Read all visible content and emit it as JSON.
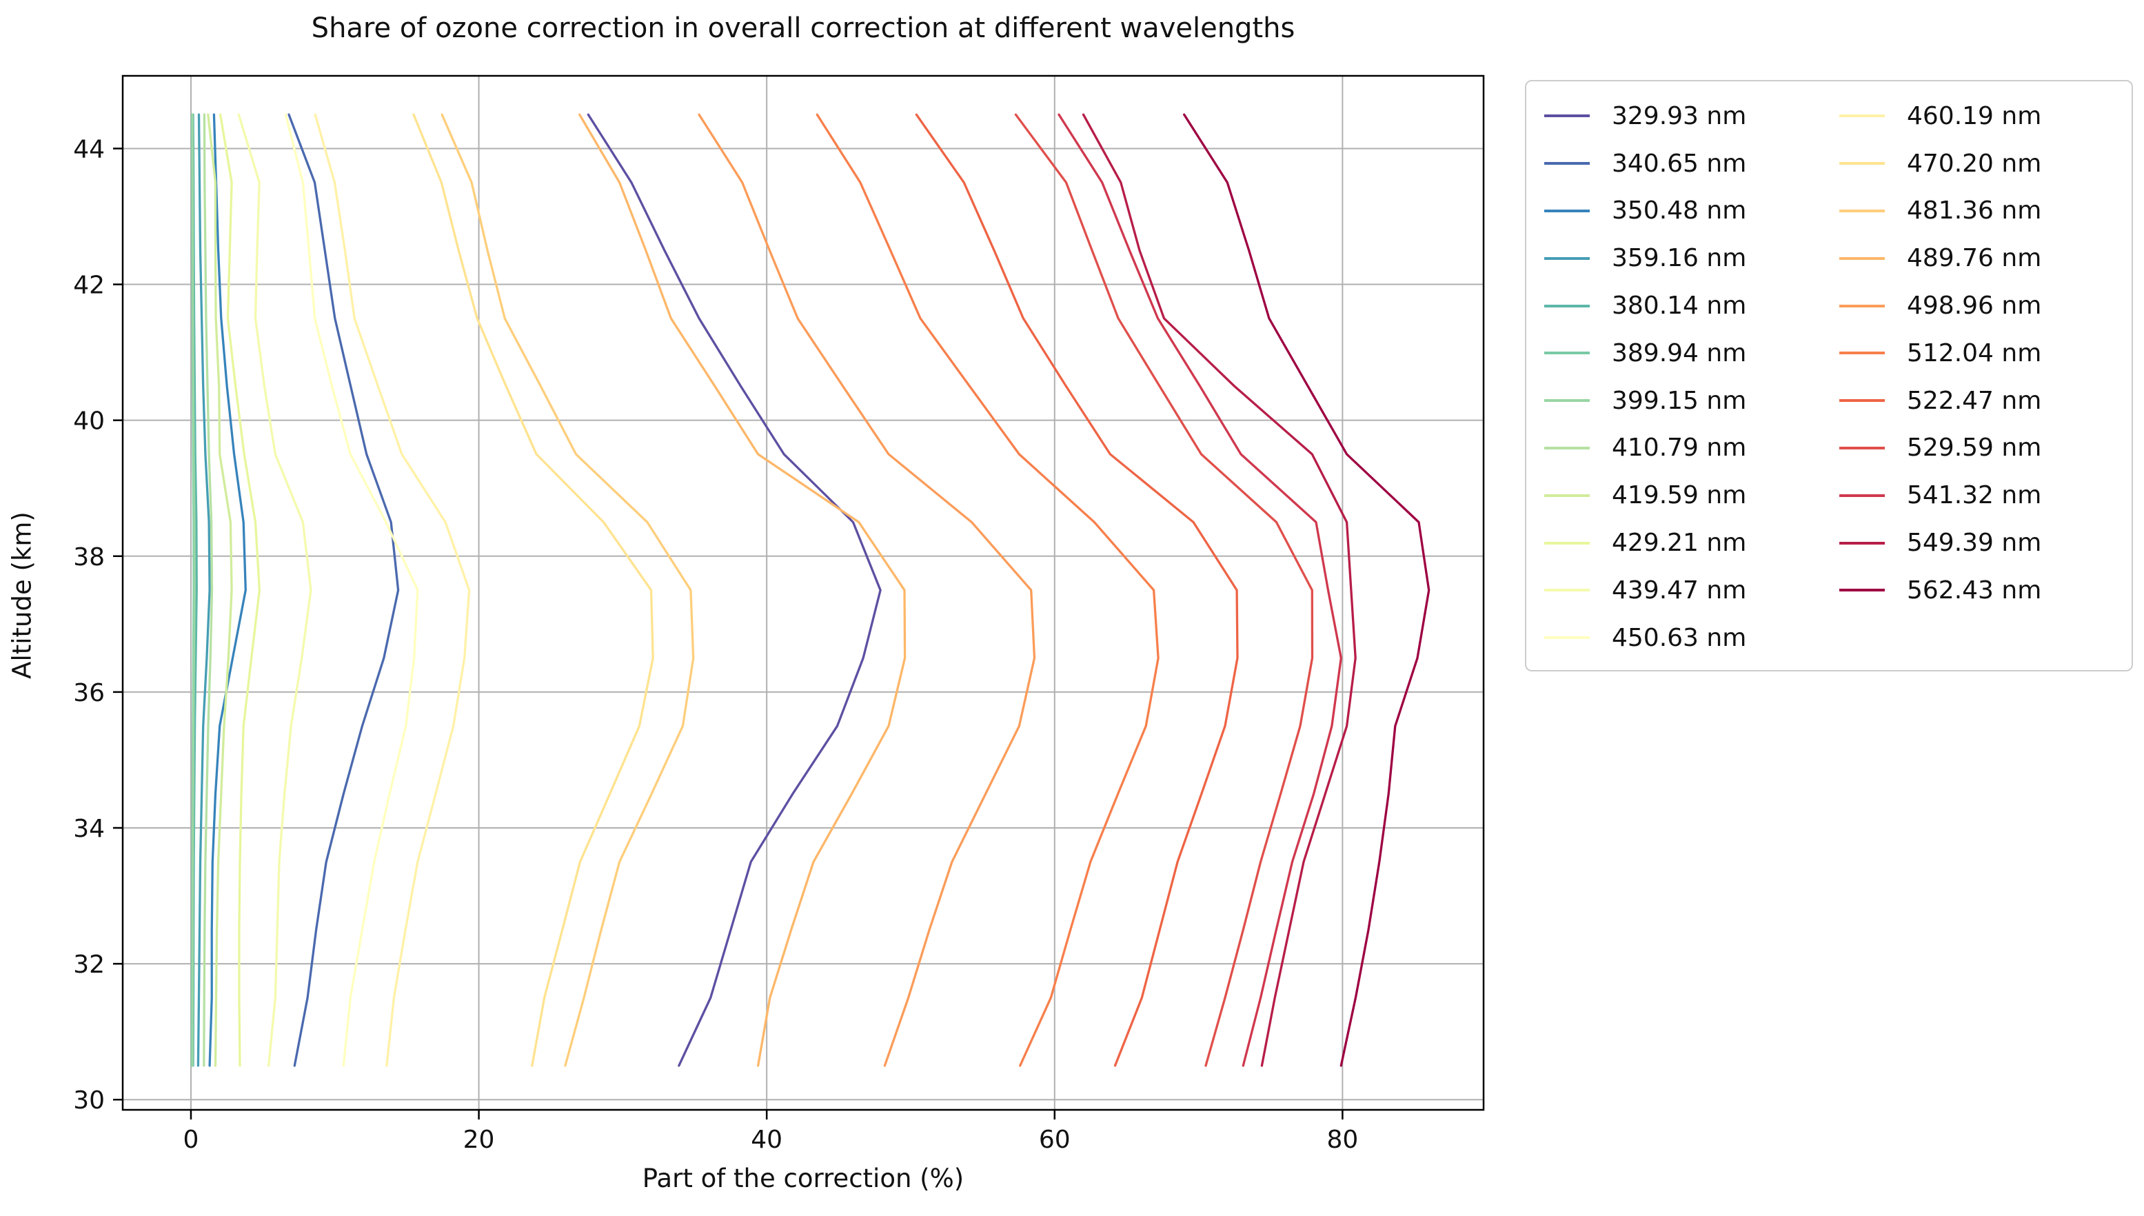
{
  "chart_data": {
    "type": "line",
    "title": "Share of ozone correction in overall correction at different wavelengths",
    "xlabel": "Part of the correction (%)",
    "ylabel": "Altitude (km)",
    "xlim": [
      -4.74,
      89.8
    ],
    "ylim": [
      29.85,
      45.07
    ],
    "xticks": [
      0,
      20,
      40,
      60,
      80
    ],
    "yticks": [
      30,
      32,
      34,
      36,
      38,
      40,
      42,
      44
    ],
    "grid": true,
    "grid_color": "#b0b0b0",
    "spine_color": "#000000",
    "legend_position": "outside-right",
    "legend_columns": 2,
    "legend_col1_count": 12,
    "altitudes": [
      30.5,
      31.5,
      32.5,
      33.5,
      34.5,
      35.5,
      36.5,
      37.5,
      38.5,
      39.5,
      40.5,
      41.5,
      42.5,
      43.5,
      44.5
    ],
    "series": [
      {
        "name": "329.93 nm",
        "color": "#5e4fa2",
        "values": [
          33.9,
          36.1,
          37.5,
          38.9,
          41.8,
          44.9,
          46.7,
          47.9,
          46.0,
          41.2,
          38.2,
          35.3,
          32.9,
          30.6,
          27.6
        ]
      },
      {
        "name": "340.65 nm",
        "color": "#4a69ae",
        "values": [
          7.2,
          8.1,
          8.7,
          9.4,
          10.6,
          11.9,
          13.4,
          14.4,
          13.9,
          12.2,
          11.1,
          10.0,
          9.3,
          8.6,
          6.8
        ]
      },
      {
        "name": "350.48 nm",
        "color": "#3683bb",
        "values": [
          1.3,
          1.45,
          1.45,
          1.5,
          1.7,
          2.0,
          2.9,
          3.8,
          3.65,
          3.0,
          2.5,
          2.1,
          1.9,
          1.75,
          1.6
        ]
      },
      {
        "name": "359.16 nm",
        "color": "#459db4",
        "values": [
          0.5,
          0.55,
          0.6,
          0.65,
          0.75,
          0.85,
          1.1,
          1.3,
          1.25,
          1.0,
          0.85,
          0.75,
          0.65,
          0.6,
          0.55
        ]
      },
      {
        "name": "380.14 nm",
        "color": "#5db7a9",
        "values": [
          0.15,
          0.17,
          0.18,
          0.2,
          0.23,
          0.27,
          0.33,
          0.4,
          0.38,
          0.3,
          0.26,
          0.22,
          0.2,
          0.18,
          0.15
        ]
      },
      {
        "name": "389.94 nm",
        "color": "#79c9a5",
        "values": [
          0.07,
          0.08,
          0.09,
          0.1,
          0.12,
          0.14,
          0.17,
          0.2,
          0.19,
          0.15,
          0.13,
          0.11,
          0.1,
          0.09,
          0.08
        ]
      },
      {
        "name": "399.15 nm",
        "color": "#98d6a4",
        "values": [
          0.1,
          0.11,
          0.12,
          0.13,
          0.15,
          0.17,
          0.21,
          0.25,
          0.24,
          0.19,
          0.16,
          0.14,
          0.13,
          0.12,
          0.1
        ]
      },
      {
        "name": "410.79 nm",
        "color": "#b6e1a2",
        "values": [
          0.9,
          0.92,
          0.95,
          1.0,
          1.1,
          1.2,
          1.35,
          1.46,
          1.42,
          1.25,
          1.15,
          1.05,
          1.0,
          0.95,
          0.93
        ]
      },
      {
        "name": "419.59 nm",
        "color": "#d1ec9c",
        "values": [
          1.7,
          1.75,
          1.8,
          1.9,
          2.1,
          2.3,
          2.6,
          2.83,
          2.75,
          2.0,
          1.95,
          1.73,
          1.7,
          1.7,
          1.19
        ]
      },
      {
        "name": "429.21 nm",
        "color": "#e8f69c",
        "values": [
          3.4,
          3.35,
          3.35,
          3.4,
          3.5,
          3.65,
          4.2,
          4.76,
          4.48,
          3.7,
          3.1,
          2.56,
          2.7,
          2.83,
          2.04
        ]
      },
      {
        "name": "439.47 nm",
        "color": "#f4faad",
        "values": [
          5.4,
          5.86,
          6.0,
          6.13,
          6.5,
          6.95,
          7.7,
          8.33,
          7.78,
          5.86,
          5.1,
          4.48,
          4.6,
          4.75,
          3.32
        ]
      },
      {
        "name": "450.63 nm",
        "color": "#ffffbf",
        "values": [
          10.6,
          11.08,
          11.9,
          12.73,
          13.8,
          14.93,
          15.5,
          15.75,
          13.55,
          11.08,
          9.8,
          8.61,
          8.2,
          7.78,
          6.58
        ]
      },
      {
        "name": "460.19 nm",
        "color": "#fff1a7",
        "values": [
          13.6,
          14.1,
          14.9,
          15.75,
          17.0,
          18.23,
          19.0,
          19.33,
          17.68,
          14.65,
          13.0,
          11.36,
          10.7,
          9.98,
          8.63
        ]
      },
      {
        "name": "470.20 nm",
        "color": "#fee390",
        "values": [
          23.7,
          24.55,
          25.8,
          27.03,
          29.1,
          31.15,
          32.1,
          31.97,
          28.67,
          24.0,
          21.9,
          19.88,
          18.6,
          17.4,
          15.47
        ]
      },
      {
        "name": "481.36 nm",
        "color": "#fece7c",
        "values": [
          26.0,
          27.3,
          28.5,
          29.77,
          32.0,
          34.17,
          34.9,
          34.72,
          31.7,
          26.75,
          24.3,
          21.8,
          20.6,
          19.5,
          17.44
        ]
      },
      {
        "name": "489.76 nm",
        "color": "#fdb769",
        "values": [
          39.4,
          40.22,
          41.7,
          43.25,
          45.9,
          48.47,
          49.6,
          49.57,
          46.4,
          39.4,
          36.4,
          33.35,
          31.6,
          29.77,
          27.0
        ]
      },
      {
        "name": "498.96 nm",
        "color": "#fb9c59",
        "values": [
          48.2,
          49.84,
          51.3,
          52.87,
          55.2,
          57.54,
          58.6,
          58.37,
          54.24,
          48.47,
          45.3,
          42.15,
          40.2,
          38.3,
          35.3
        ]
      },
      {
        "name": "512.04 nm",
        "color": "#f77f4b",
        "values": [
          57.6,
          59.74,
          61.1,
          62.49,
          64.4,
          66.34,
          67.2,
          66.89,
          62.76,
          57.54,
          54.1,
          50.67,
          48.6,
          46.5,
          43.5
        ]
      },
      {
        "name": "522.47 nm",
        "color": "#ee6445",
        "values": [
          64.2,
          66.06,
          67.3,
          68.54,
          70.2,
          71.84,
          72.7,
          72.66,
          69.64,
          63.86,
          60.8,
          57.82,
          55.8,
          53.7,
          50.4
        ]
      },
      {
        "name": "529.59 nm",
        "color": "#e04f4b",
        "values": [
          70.5,
          71.84,
          73.1,
          74.31,
          75.7,
          77.06,
          77.9,
          77.89,
          75.41,
          70.19,
          67.3,
          64.42,
          62.6,
          60.8,
          57.3
        ]
      },
      {
        "name": "541.32 nm",
        "color": "#d0384e",
        "values": [
          73.1,
          74.31,
          75.4,
          76.51,
          78.0,
          79.26,
          79.9,
          79.0,
          78.16,
          72.94,
          70.1,
          67.17,
          65.2,
          63.3,
          60.3
        ]
      },
      {
        "name": "549.39 nm",
        "color": "#b71d48",
        "values": [
          74.4,
          75.3,
          76.3,
          77.3,
          78.8,
          80.3,
          80.9,
          80.6,
          80.3,
          77.89,
          72.5,
          67.6,
          65.9,
          64.6,
          62.0
        ]
      },
      {
        "name": "562.43 nm",
        "color": "#9e0142",
        "values": [
          79.9,
          80.91,
          81.8,
          82.56,
          83.2,
          83.66,
          85.2,
          86.0,
          85.3,
          80.3,
          77.6,
          74.9,
          73.5,
          72.0,
          69.0
        ]
      }
    ]
  }
}
